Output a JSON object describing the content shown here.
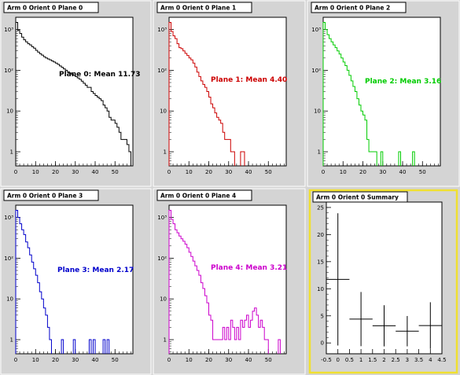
{
  "chart_data": [
    {
      "type": "histogram",
      "title": "Arm 0 Orient 0 Plane 0",
      "annotation": "Plane 0: Mean 11.73",
      "color": "#000000",
      "log_y": true,
      "xlim": [
        0,
        59
      ],
      "ylim": [
        0.45,
        2000
      ],
      "x_ticks": [
        0,
        10,
        20,
        30,
        40,
        50
      ],
      "y_ticks": [
        {
          "v": 1,
          "label": "1"
        },
        {
          "v": 10,
          "label": "10"
        },
        {
          "v": 100,
          "label": "10²"
        },
        {
          "v": 1000,
          "label": "10³"
        }
      ],
      "bin_width": 1,
      "x_start": 0,
      "values": [
        1500,
        950,
        800,
        650,
        560,
        500,
        450,
        420,
        380,
        350,
        310,
        280,
        255,
        235,
        215,
        200,
        190,
        180,
        170,
        160,
        150,
        140,
        128,
        118,
        108,
        100,
        92,
        86,
        80,
        75,
        70,
        65,
        60,
        54,
        48,
        43,
        38,
        38,
        30,
        27,
        24,
        22,
        20,
        18,
        14,
        12,
        10,
        7,
        6,
        6,
        5,
        4,
        3,
        2,
        2,
        2,
        1.5,
        1
      ]
    },
    {
      "type": "histogram",
      "title": "Arm 0 Orient 0 Plane 1",
      "annotation": "Plane 1: Mean 4.40",
      "color": "#cc0000",
      "log_y": true,
      "xlim": [
        0,
        59
      ],
      "ylim": [
        0.45,
        2000
      ],
      "x_ticks": [
        0,
        10,
        20,
        30,
        40,
        50
      ],
      "y_ticks": [
        {
          "v": 1,
          "label": "1"
        },
        {
          "v": 10,
          "label": "10"
        },
        {
          "v": 100,
          "label": "10²"
        },
        {
          "v": 1000,
          "label": "10³"
        }
      ],
      "bin_width": 1,
      "x_start": 0,
      "values": [
        1500,
        900,
        700,
        600,
        450,
        360,
        340,
        300,
        260,
        230,
        200,
        180,
        150,
        120,
        90,
        70,
        55,
        45,
        38,
        30,
        22,
        15,
        12,
        9,
        7,
        6,
        5,
        3,
        2,
        2,
        2,
        1,
        1,
        0,
        0,
        0,
        1,
        1
      ]
    },
    {
      "type": "histogram",
      "title": "Arm 0 Orient 0 Plane 2",
      "annotation": "Plane 2: Mean 3.16",
      "color": "#00cc00",
      "log_y": true,
      "xlim": [
        0,
        59
      ],
      "ylim": [
        0.45,
        2000
      ],
      "x_ticks": [
        0,
        10,
        20,
        30,
        40,
        50
      ],
      "y_ticks": [
        {
          "v": 1,
          "label": "1"
        },
        {
          "v": 10,
          "label": "10"
        },
        {
          "v": 100,
          "label": "10²"
        },
        {
          "v": 1000,
          "label": "10³"
        }
      ],
      "bin_width": 1,
      "x_start": 0,
      "values": [
        1500,
        1000,
        750,
        600,
        500,
        420,
        360,
        300,
        250,
        200,
        160,
        130,
        100,
        75,
        55,
        40,
        30,
        20,
        14,
        10,
        8,
        6,
        2,
        1,
        1,
        1,
        1,
        0,
        0,
        1,
        0,
        0,
        0,
        0,
        0,
        0,
        0,
        0,
        1,
        0,
        0,
        0,
        0,
        0,
        0,
        1
      ]
    },
    {
      "type": "histogram",
      "title": "Arm 0 Orient 0 Plane 3",
      "annotation": "Plane 3: Mean 2.17",
      "color": "#0000cc",
      "log_y": true,
      "xlim": [
        0,
        59
      ],
      "ylim": [
        0.45,
        2000
      ],
      "x_ticks": [
        0,
        10,
        20,
        30,
        40,
        50
      ],
      "y_ticks": [
        {
          "v": 1,
          "label": "1"
        },
        {
          "v": 10,
          "label": "10"
        },
        {
          "v": 100,
          "label": "10²"
        },
        {
          "v": 1000,
          "label": "10³"
        }
      ],
      "bin_width": 1,
      "x_start": 0,
      "values": [
        1500,
        1000,
        700,
        500,
        380,
        250,
        180,
        120,
        80,
        55,
        38,
        25,
        15,
        10,
        6,
        4,
        2,
        1,
        0,
        0,
        0,
        0,
        0,
        1,
        0,
        0,
        0,
        0,
        0,
        1,
        0,
        0,
        0,
        0,
        0,
        0,
        0,
        1,
        0,
        1,
        0,
        0,
        0,
        0,
        1,
        0,
        1
      ]
    },
    {
      "type": "histogram",
      "title": "Arm 0 Orient 0 Plane 4",
      "annotation": "Plane 4: Mean 3.21",
      "color": "#cc00cc",
      "log_y": true,
      "xlim": [
        0,
        59
      ],
      "ylim": [
        0.45,
        2000
      ],
      "x_ticks": [
        0,
        10,
        20,
        30,
        40,
        50
      ],
      "y_ticks": [
        {
          "v": 1,
          "label": "1"
        },
        {
          "v": 10,
          "label": "10"
        },
        {
          "v": 100,
          "label": "10²"
        },
        {
          "v": 1000,
          "label": "10³"
        }
      ],
      "bin_width": 1,
      "x_start": 0,
      "values": [
        1500,
        900,
        700,
        500,
        420,
        350,
        300,
        260,
        220,
        180,
        140,
        110,
        85,
        65,
        50,
        38,
        25,
        18,
        12,
        8,
        4,
        3,
        1,
        1,
        1,
        1,
        1,
        2,
        1,
        2,
        1,
        3,
        2,
        1,
        2,
        1,
        3,
        2,
        3,
        4,
        2,
        3,
        5,
        6,
        4,
        2,
        3,
        2,
        1,
        1,
        0,
        0,
        0,
        0,
        0,
        1
      ]
    },
    {
      "type": "scatter",
      "title": "Arm 0 Orient 0 Summary",
      "log_y": false,
      "xlim": [
        -0.5,
        4.5
      ],
      "ylim": [
        -2,
        26
      ],
      "x_ticks": [
        {
          "v": -0.5,
          "label": "-0.5"
        },
        {
          "v": 0,
          "label": "0"
        },
        {
          "v": 0.5,
          "label": "0.5"
        },
        {
          "v": 1,
          "label": "1"
        },
        {
          "v": 1.5,
          "label": "1.5"
        },
        {
          "v": 2,
          "label": "2"
        },
        {
          "v": 2.5,
          "label": "2.5"
        },
        {
          "v": 3,
          "label": "3"
        },
        {
          "v": 3.5,
          "label": "3.5"
        },
        {
          "v": 4,
          "label": "4"
        },
        {
          "v": 4.5,
          "label": "4.5"
        }
      ],
      "y_ticks": [
        {
          "v": 0,
          "label": "0"
        },
        {
          "v": 5,
          "label": "5"
        },
        {
          "v": 10,
          "label": "10"
        },
        {
          "v": 15,
          "label": "15"
        },
        {
          "v": 20,
          "label": "20"
        },
        {
          "v": 25,
          "label": "25"
        }
      ],
      "points": [
        {
          "x": 0,
          "y": 11.73,
          "xerr": 0.5,
          "yerr": 12.2
        },
        {
          "x": 1,
          "y": 4.4,
          "xerr": 0.5,
          "yerr": 5.0
        },
        {
          "x": 2,
          "y": 3.16,
          "xerr": 0.5,
          "yerr": 3.8
        },
        {
          "x": 3,
          "y": 2.17,
          "xerr": 0.5,
          "yerr": 2.8
        },
        {
          "x": 4,
          "y": 3.21,
          "xerr": 0.5,
          "yerr": 4.3
        }
      ],
      "color": "#000000",
      "highlight_color": "#f0e030"
    }
  ]
}
